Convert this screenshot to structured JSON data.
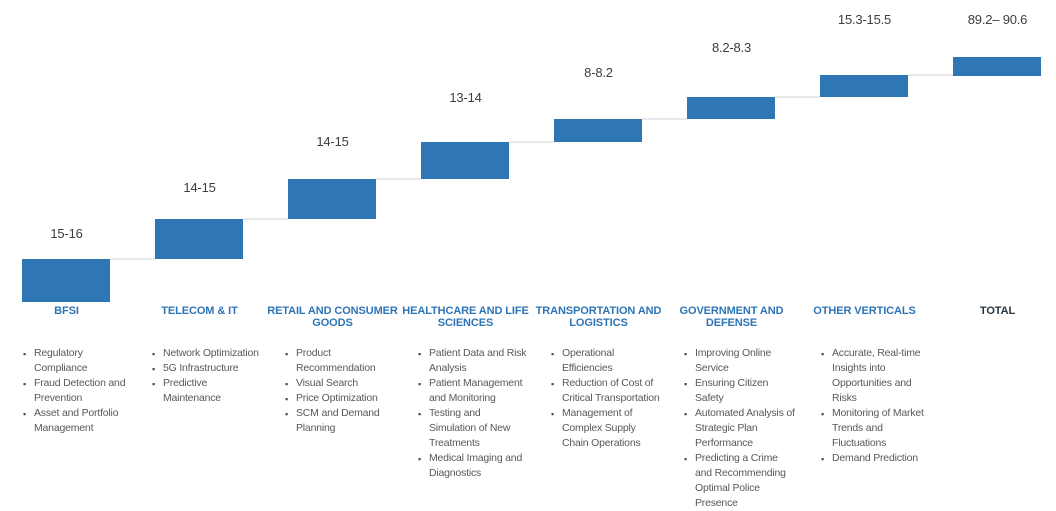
{
  "chart_data": {
    "type": "bar",
    "subtype": "waterfall",
    "title": "",
    "xlabel": "",
    "ylabel": "",
    "grid": false,
    "legend": "none",
    "categories": [
      "BFSI",
      "TELECOM & IT",
      "RETAIL AND CONSUMER GOODS",
      "HEALTHCARE AND LIFE SCIENCES",
      "TRANSPORTATION AND LOGISTICS",
      "GOVERNMENT AND DEFENSE",
      "OTHER VERTICALS",
      "TOTAL"
    ],
    "value_labels": [
      "15-16",
      "14-15",
      "14-15",
      "13-14",
      "8-8.2",
      "8.2-8.3",
      "15.3-15.5",
      "89.2– 90.6"
    ],
    "values": [
      [
        15,
        16
      ],
      [
        14,
        15
      ],
      [
        14,
        15
      ],
      [
        13,
        14
      ],
      [
        8,
        8.2
      ],
      [
        8.2,
        8.3
      ],
      [
        15.3,
        15.5
      ],
      [
        89.2,
        90.6
      ]
    ],
    "colors": {
      "bar": "#2F76B5",
      "connector": "#E7E9EB",
      "category_label": "#2E75B6",
      "total_label": "#253544",
      "value_label": "#3D3D3D",
      "bullet_text": "#595959"
    }
  },
  "use_cases": [
    [
      "Regulatory Compliance",
      "Fraud Detection and Prevention",
      "Asset and Portfolio Management"
    ],
    [
      "Network Optimization",
      "5G Infrastructure",
      "Predictive Maintenance"
    ],
    [
      "Product Recommendation",
      "Visual Search",
      "Price Optimization",
      "SCM and Demand Planning"
    ],
    [
      "Patient Data and Risk Analysis",
      "Patient Management and Monitoring",
      "Testing and Simulation of New Treatments",
      "Medical Imaging and Diagnostics"
    ],
    [
      "Operational Efficiencies",
      "Reduction of Cost of Critical Transportation",
      "Management of Complex Supply Chain Operations"
    ],
    [
      "Improving Online Service",
      "Ensuring Citizen Safety",
      "Automated Analysis of Strategic Plan Performance",
      "Predicting a Crime and Recommending Optimal Police Presence"
    ],
    [
      "Accurate, Real-time Insights into Opportunities and Risks",
      "Monitoring of Market Trends and Fluctuations",
      "Demand Prediction"
    ],
    []
  ]
}
